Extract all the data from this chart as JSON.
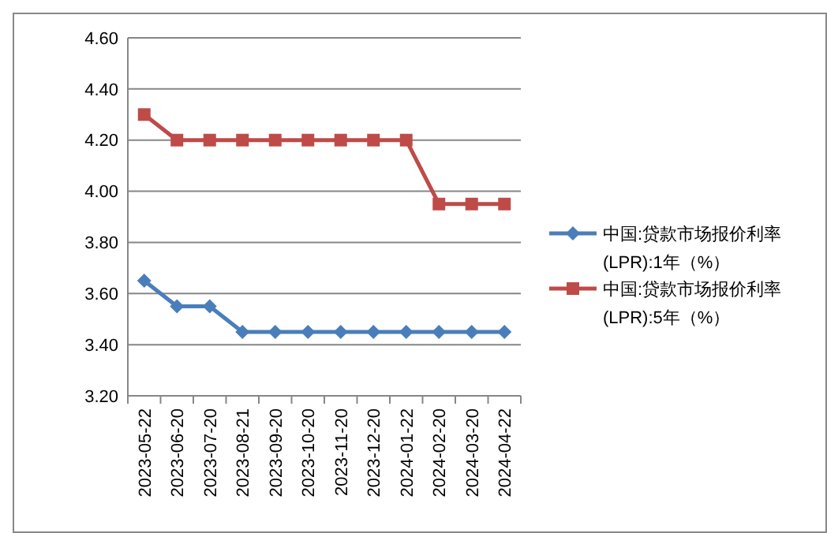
{
  "chart_data": {
    "type": "line",
    "categories": [
      "2023-05-22",
      "2023-06-20",
      "2023-07-20",
      "2023-08-21",
      "2023-09-20",
      "2023-10-20",
      "2023-11-20",
      "2023-12-20",
      "2024-01-22",
      "2024-02-20",
      "2024-03-20",
      "2024-04-22"
    ],
    "series": [
      {
        "name": "中国:贷款市场报价利率(LPR):1年（%）",
        "color": "#4a7ebb",
        "marker": "diamond",
        "values": [
          3.65,
          3.55,
          3.55,
          3.45,
          3.45,
          3.45,
          3.45,
          3.45,
          3.45,
          3.45,
          3.45,
          3.45
        ]
      },
      {
        "name": "中国:贷款市场报价利率(LPR):5年（%）",
        "color": "#be4b48",
        "marker": "square",
        "values": [
          4.3,
          4.2,
          4.2,
          4.2,
          4.2,
          4.2,
          4.2,
          4.2,
          4.2,
          3.95,
          3.95,
          3.95
        ]
      }
    ],
    "ylim": [
      3.2,
      4.6
    ],
    "yticks": [
      {
        "value": 3.2,
        "label": "3.20"
      },
      {
        "value": 3.4,
        "label": "3.40"
      },
      {
        "value": 3.6,
        "label": "3.60"
      },
      {
        "value": 3.8,
        "label": "3.80"
      },
      {
        "value": 4.0,
        "label": "4.00"
      },
      {
        "value": 4.2,
        "label": "4.20"
      },
      {
        "value": 4.4,
        "label": "4.40"
      },
      {
        "value": 4.6,
        "label": "4.60"
      }
    ],
    "grid": "y",
    "legend": "right",
    "line_style": "solid"
  }
}
